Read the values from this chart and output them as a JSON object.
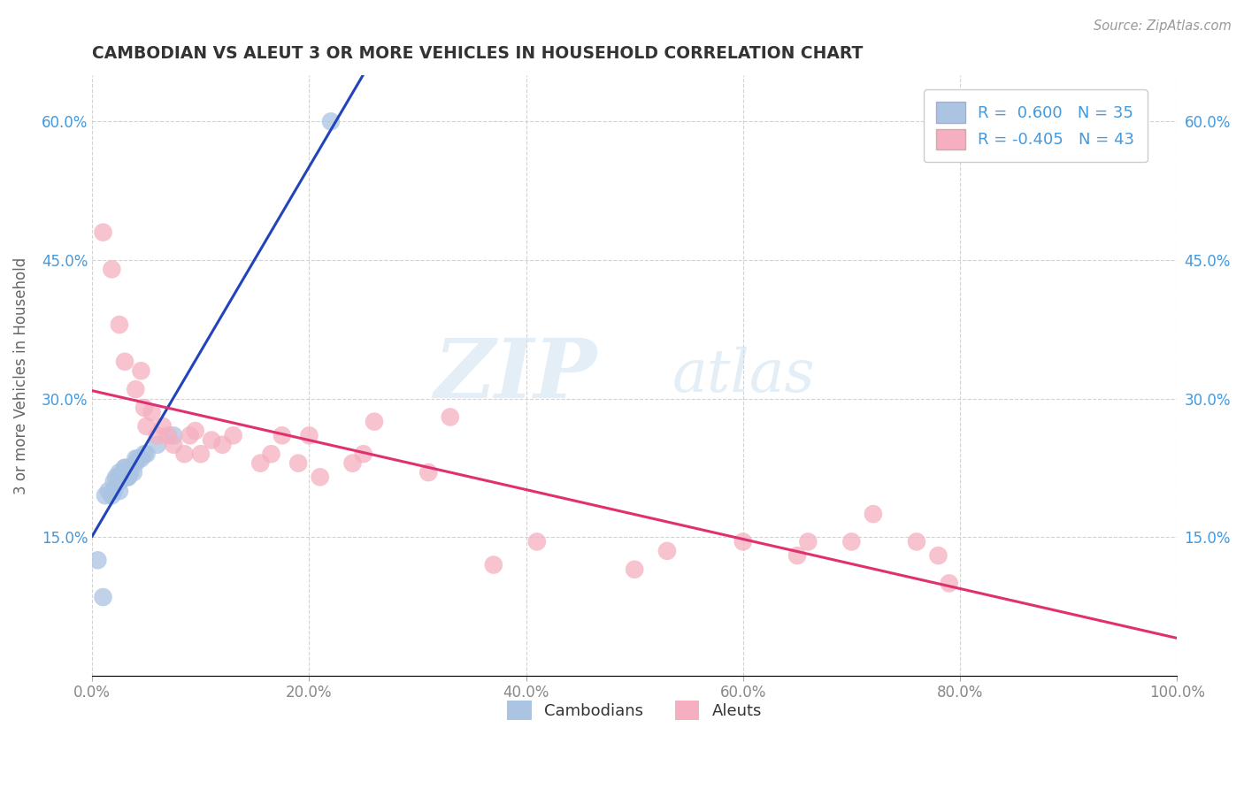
{
  "title": "CAMBODIAN VS ALEUT 3 OR MORE VEHICLES IN HOUSEHOLD CORRELATION CHART",
  "source": "Source: ZipAtlas.com",
  "ylabel": "3 or more Vehicles in Household",
  "xlim": [
    0,
    1.0
  ],
  "ylim": [
    0,
    0.65
  ],
  "xticks": [
    0.0,
    0.2,
    0.4,
    0.6,
    0.8,
    1.0
  ],
  "xticklabels": [
    "0.0%",
    "20.0%",
    "40.0%",
    "60.0%",
    "80.0%",
    "100.0%"
  ],
  "yticks": [
    0.0,
    0.15,
    0.3,
    0.45,
    0.6
  ],
  "yticklabels_left": [
    "",
    "15.0%",
    "30.0%",
    "45.0%",
    "60.0%"
  ],
  "yticklabels_right": [
    "",
    "15.0%",
    "30.0%",
    "45.0%",
    "60.0%"
  ],
  "legend_r_cambodian": " 0.600",
  "legend_n_cambodian": "35",
  "legend_r_aleut": "-0.405",
  "legend_n_aleut": "43",
  "cambodian_color": "#aac4e2",
  "aleut_color": "#f5afc0",
  "trendline_cambodian_color": "#2244bb",
  "trendline_aleut_color": "#e03070",
  "watermark_zip": "ZIP",
  "watermark_atlas": "atlas",
  "cambodian_x": [
    0.005,
    0.01,
    0.012,
    0.015,
    0.018,
    0.02,
    0.02,
    0.022,
    0.025,
    0.025,
    0.025,
    0.025,
    0.028,
    0.028,
    0.03,
    0.03,
    0.03,
    0.03,
    0.032,
    0.032,
    0.033,
    0.033,
    0.035,
    0.035,
    0.035,
    0.038,
    0.04,
    0.04,
    0.042,
    0.045,
    0.048,
    0.05,
    0.06,
    0.075,
    0.22
  ],
  "cambodian_y": [
    0.125,
    0.085,
    0.195,
    0.2,
    0.195,
    0.2,
    0.21,
    0.215,
    0.2,
    0.21,
    0.215,
    0.22,
    0.215,
    0.22,
    0.22,
    0.215,
    0.225,
    0.225,
    0.22,
    0.215,
    0.215,
    0.215,
    0.225,
    0.225,
    0.22,
    0.22,
    0.23,
    0.235,
    0.235,
    0.235,
    0.24,
    0.24,
    0.25,
    0.26,
    0.6
  ],
  "aleut_x": [
    0.01,
    0.018,
    0.025,
    0.03,
    0.04,
    0.045,
    0.048,
    0.05,
    0.055,
    0.06,
    0.065,
    0.07,
    0.075,
    0.085,
    0.09,
    0.095,
    0.1,
    0.11,
    0.12,
    0.13,
    0.155,
    0.165,
    0.175,
    0.19,
    0.2,
    0.21,
    0.24,
    0.25,
    0.26,
    0.31,
    0.33,
    0.37,
    0.41,
    0.5,
    0.53,
    0.6,
    0.65,
    0.7,
    0.72,
    0.76,
    0.78,
    0.79,
    0.66
  ],
  "aleut_y": [
    0.48,
    0.44,
    0.38,
    0.34,
    0.31,
    0.33,
    0.29,
    0.27,
    0.285,
    0.26,
    0.27,
    0.26,
    0.25,
    0.24,
    0.26,
    0.265,
    0.24,
    0.255,
    0.25,
    0.26,
    0.23,
    0.24,
    0.26,
    0.23,
    0.26,
    0.215,
    0.23,
    0.24,
    0.275,
    0.22,
    0.28,
    0.12,
    0.145,
    0.115,
    0.135,
    0.145,
    0.13,
    0.145,
    0.175,
    0.145,
    0.13,
    0.1,
    0.145
  ],
  "background_color": "#ffffff",
  "grid_color": "#c8c8c8",
  "tick_label_color": "#888888",
  "right_tick_color": "#4499dd",
  "title_color": "#333333",
  "source_color": "#999999",
  "ylabel_color": "#666666"
}
